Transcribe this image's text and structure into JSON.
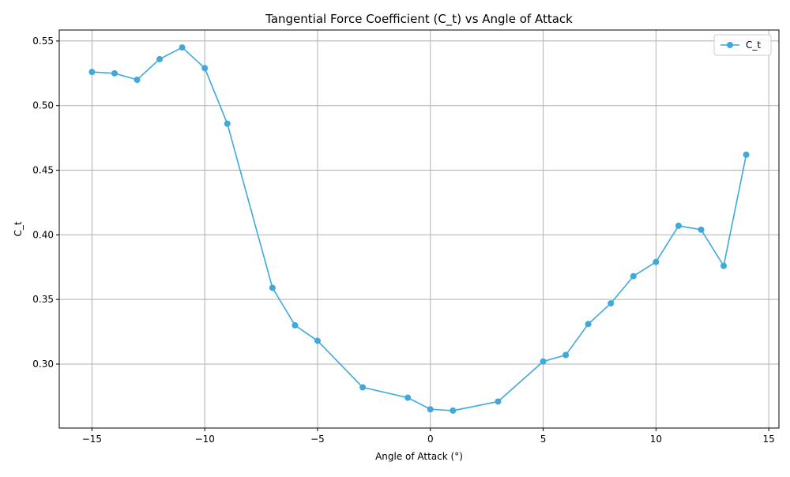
{
  "chart_data": {
    "type": "line",
    "title": "Tangential Force Coefficient (C_t) vs Angle of Attack",
    "xlabel": "Angle of Attack (°)",
    "ylabel": "C_t",
    "xlim": [
      -16.45,
      15.45
    ],
    "ylim": [
      0.2505,
      0.5585
    ],
    "xticks": [
      -15,
      -10,
      -5,
      0,
      5,
      10,
      15
    ],
    "xtick_labels": [
      "−15",
      "−10",
      "−5",
      "0",
      "5",
      "10",
      "15"
    ],
    "yticks": [
      0.3,
      0.35,
      0.4,
      0.45,
      0.5,
      0.55
    ],
    "ytick_labels": [
      "0.30",
      "0.35",
      "0.40",
      "0.45",
      "0.50",
      "0.55"
    ],
    "grid": true,
    "legend_position": "top-right",
    "series": [
      {
        "name": "C_t",
        "color": "#3fa9dc",
        "marker": "circle",
        "x": [
          -15,
          -14,
          -13,
          -12,
          -11,
          -10,
          -9,
          -7,
          -6,
          -5,
          -3,
          -1,
          0,
          1,
          3,
          5,
          6,
          7,
          8,
          9,
          10,
          11,
          12,
          13,
          14
        ],
        "y": [
          0.526,
          0.525,
          0.52,
          0.536,
          0.545,
          0.529,
          0.486,
          0.359,
          0.33,
          0.318,
          0.282,
          0.274,
          0.265,
          0.264,
          0.271,
          0.302,
          0.307,
          0.331,
          0.347,
          0.368,
          0.379,
          0.407,
          0.404,
          0.376,
          0.462
        ]
      }
    ]
  }
}
